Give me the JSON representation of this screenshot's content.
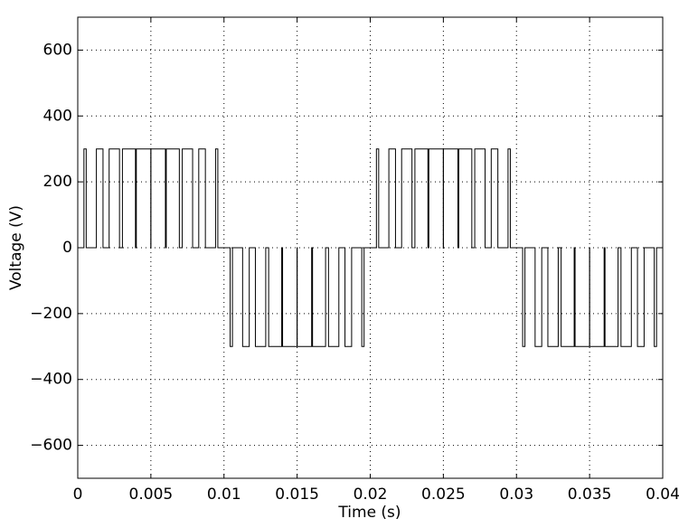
{
  "chart_data": {
    "type": "line",
    "xlabel": "Time (s)",
    "ylabel": "Voltage (V)",
    "step": "post",
    "xlim": [
      0,
      0.04
    ],
    "ylim": [
      -700,
      700
    ],
    "xticks": [
      0,
      0.005,
      0.01,
      0.015,
      0.02,
      0.025,
      0.03,
      0.035,
      0.04
    ],
    "yticks": [
      {
        "value": -600,
        "label": "−600"
      },
      {
        "value": -400,
        "label": "−400"
      },
      {
        "value": -200,
        "label": "−200"
      },
      0,
      200,
      400,
      600
    ],
    "grid": true,
    "series": [
      {
        "color": "#000000",
        "x": [
          0,
          0.000422,
          0.000578,
          0.001273,
          0.001727,
          0.002146,
          0.002854,
          0.003054,
          0.003946,
          0.004006,
          0.004994,
          0.005006,
          0.005994,
          0.006054,
          0.006946,
          0.007146,
          0.007854,
          0.008273,
          0.008727,
          0.009422,
          0.009578,
          0.010422,
          0.010578,
          0.011273,
          0.011727,
          0.012146,
          0.012854,
          0.013054,
          0.013946,
          0.014006,
          0.014994,
          0.015006,
          0.015994,
          0.016054,
          0.016946,
          0.017146,
          0.017854,
          0.018273,
          0.018727,
          0.019422,
          0.019578,
          0.020422,
          0.020578,
          0.021273,
          0.021727,
          0.022146,
          0.022854,
          0.023054,
          0.023946,
          0.024006,
          0.024994,
          0.025006,
          0.025994,
          0.026054,
          0.026946,
          0.027146,
          0.027854,
          0.028273,
          0.028727,
          0.029422,
          0.029578,
          0.030422,
          0.030578,
          0.031273,
          0.031727,
          0.032146,
          0.032854,
          0.033054,
          0.033946,
          0.034006,
          0.034994,
          0.035006,
          0.035994,
          0.036054,
          0.036946,
          0.037146,
          0.037854,
          0.038273,
          0.038727,
          0.039422,
          0.039578,
          0.04
        ],
        "values": [
          0,
          300,
          0,
          300,
          0,
          300,
          0,
          300,
          0,
          300,
          0,
          300,
          0,
          300,
          0,
          300,
          0,
          300,
          0,
          300,
          0,
          -300,
          0,
          -300,
          0,
          -300,
          0,
          -300,
          0,
          -300,
          0,
          -300,
          0,
          -300,
          0,
          -300,
          0,
          -300,
          0,
          -300,
          0,
          300,
          0,
          300,
          0,
          300,
          0,
          300,
          0,
          300,
          0,
          300,
          0,
          300,
          0,
          300,
          0,
          300,
          0,
          300,
          0,
          -300,
          0,
          -300,
          0,
          -300,
          0,
          -300,
          0,
          -300,
          0,
          -300,
          0,
          -300,
          0,
          -300,
          0,
          -300,
          0,
          -300,
          0,
          0
        ]
      }
    ]
  }
}
